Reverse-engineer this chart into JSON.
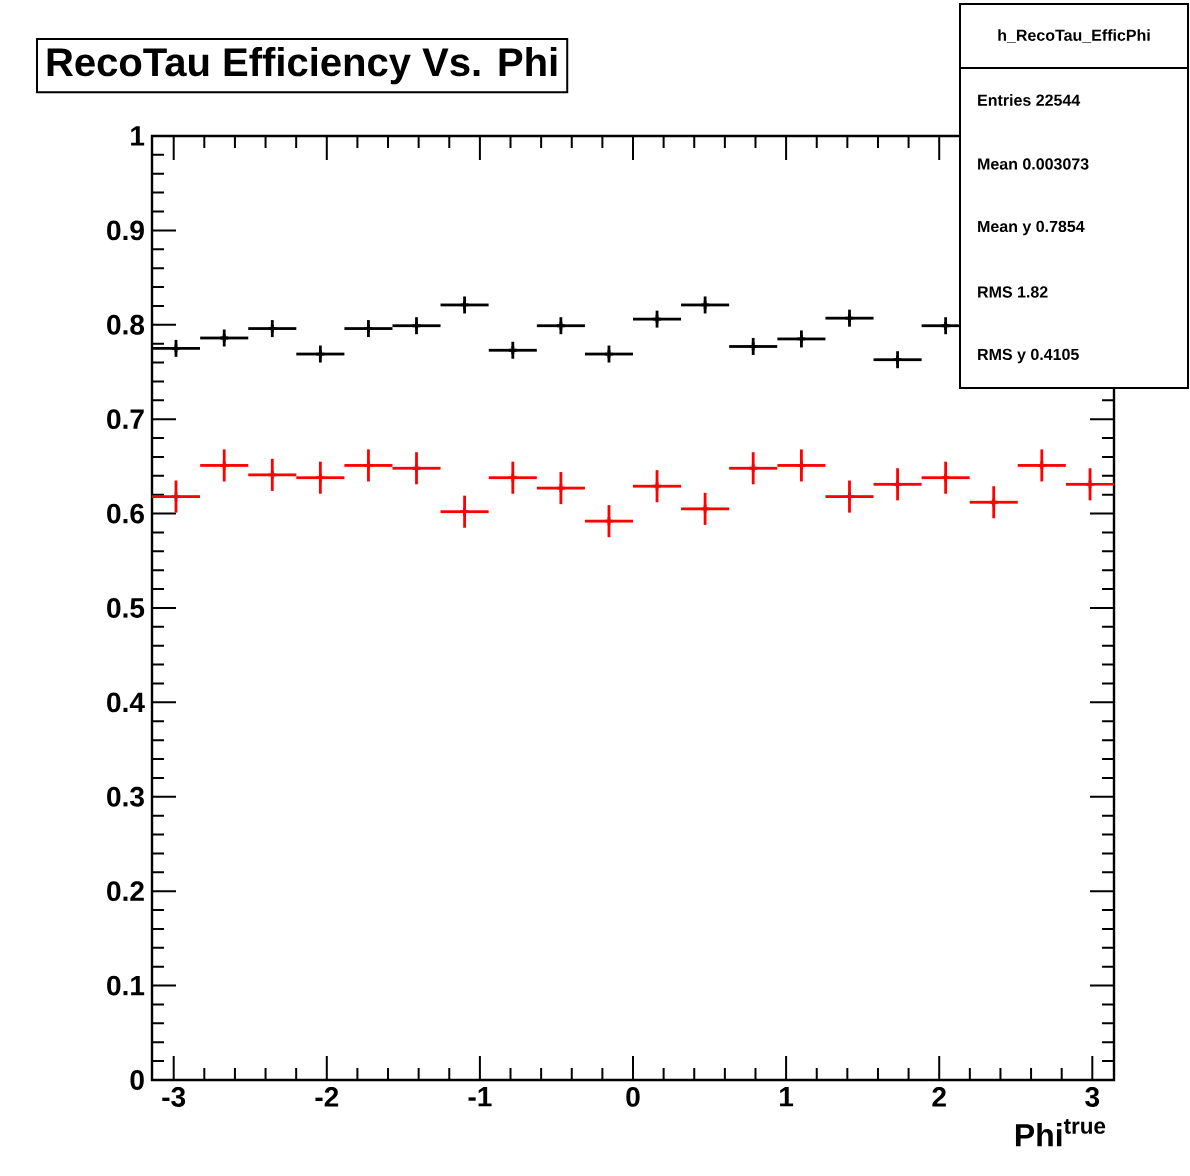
{
  "chart_data": {
    "type": "scatter",
    "title": "RecoTau Efficiency Vs. Phi",
    "xlabel": "Phi$^{true}$",
    "annotations": [
      "h_RecoTau_EfficPhi",
      "Entries    22544",
      "Mean   0.003073",
      "Mean y    0.7854",
      "RMS          1.82",
      "RMS y     0.4105"
    ],
    "xlim": [
      -3.1416,
      3.1416
    ],
    "xticks": [
      -3,
      -2,
      -1,
      0,
      1,
      2,
      3
    ],
    "ylim": [
      0,
      1
    ],
    "yticks": [
      0,
      0.1,
      0.2,
      0.3,
      0.4,
      0.5,
      0.6,
      0.7,
      0.8,
      0.9,
      1
    ],
    "x": [
      -2.985,
      -2.67,
      -2.356,
      -2.042,
      -1.728,
      -1.414,
      -1.1,
      -0.785,
      -0.471,
      -0.157,
      0.157,
      0.471,
      0.785,
      1.1,
      1.414,
      1.728,
      2.042,
      2.356,
      2.67,
      2.985
    ],
    "marker": "cross",
    "series": [
      {
        "color": "#000000",
        "values": [
          0.775,
          0.786,
          0.796,
          0.769,
          0.796,
          0.799,
          0.821,
          0.773,
          0.799,
          0.769,
          0.806,
          0.821,
          0.777,
          0.785,
          0.807,
          0.763,
          0.799,
          null,
          null,
          null
        ],
        "errors": [
          0.009,
          0.009,
          0.009,
          0.009,
          0.009,
          0.009,
          0.009,
          0.009,
          0.009,
          0.009,
          0.009,
          0.009,
          0.009,
          0.009,
          0.009,
          0.009,
          0.009,
          null,
          null,
          null
        ],
        "xerrors": [
          0.157,
          0.157,
          0.157,
          0.157,
          0.157,
          0.157,
          0.157,
          0.157,
          0.157,
          0.157,
          0.157,
          0.157,
          0.157,
          0.157,
          0.157,
          0.157,
          0.157,
          null,
          null,
          null
        ]
      },
      {
        "color": "#ff0000",
        "values": [
          0.618,
          0.651,
          0.641,
          0.638,
          0.651,
          0.648,
          0.602,
          0.638,
          0.627,
          0.592,
          0.629,
          0.605,
          0.648,
          0.651,
          0.618,
          0.631,
          0.638,
          0.612,
          0.651,
          0.631
        ],
        "errors": [
          0.017,
          0.017,
          0.017,
          0.017,
          0.017,
          0.017,
          0.017,
          0.017,
          0.017,
          0.017,
          0.017,
          0.017,
          0.017,
          0.017,
          0.017,
          0.017,
          0.017,
          0.017,
          0.017,
          0.017
        ],
        "xerrors": [
          0.157,
          0.157,
          0.157,
          0.157,
          0.157,
          0.157,
          0.157,
          0.157,
          0.157,
          0.157,
          0.157,
          0.157,
          0.157,
          0.157,
          0.157,
          0.157,
          0.157,
          0.157,
          0.157,
          0.157
        ]
      }
    ]
  }
}
